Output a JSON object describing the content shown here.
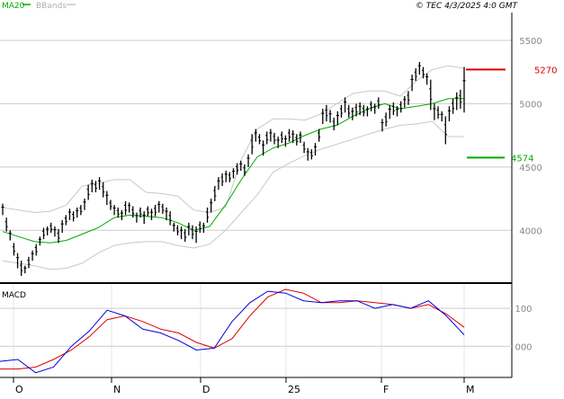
{
  "header": {
    "legend_ma": "MA20",
    "legend_bbands": "BBands",
    "source": "© TEC 4/3/2025 4:0 GMT"
  },
  "colors": {
    "price": "#000000",
    "ma": "#00aa00",
    "bbands": "#c8c8c8",
    "grid": "#cccccc",
    "resistance": "#dd0000",
    "support": "#00aa00",
    "macd": "#0000dd",
    "signal": "#dd0000"
  },
  "chart_data": [
    {
      "type": "ohlc",
      "panel": "price",
      "title": "",
      "legend": [
        "MA20",
        "BBands"
      ],
      "x_ticks": [
        "O",
        "N",
        "D",
        "25",
        "F",
        "M"
      ],
      "y_ticks": [
        4000,
        4500,
        5000,
        5500
      ],
      "ylim": [
        3590,
        5720
      ],
      "grid": "horizontal",
      "levels": [
        {
          "name": "resistance",
          "label": "5270",
          "value": 5270,
          "color": "#dd0000"
        },
        {
          "name": "support",
          "label": "4574",
          "value": 4574,
          "color": "#00aa00"
        }
      ],
      "series": [
        {
          "name": "price",
          "kind": "bars",
          "values": [
            [
              4210,
              4120
            ],
            [
              4100,
              3990
            ],
            [
              4000,
              3920
            ],
            [
              3900,
              3800
            ],
            [
              3820,
              3700
            ],
            [
              3760,
              3640
            ],
            [
              3720,
              3660
            ],
            [
              3790,
              3700
            ],
            [
              3840,
              3760
            ],
            [
              3890,
              3800
            ],
            [
              3950,
              3880
            ],
            [
              4020,
              3930
            ],
            [
              4030,
              3960
            ],
            [
              4060,
              3980
            ],
            [
              4030,
              3950
            ],
            [
              4010,
              3900
            ],
            [
              4080,
              3980
            ],
            [
              4120,
              4040
            ],
            [
              4170,
              4080
            ],
            [
              4150,
              4070
            ],
            [
              4180,
              4100
            ],
            [
              4200,
              4120
            ],
            [
              4250,
              4160
            ],
            [
              4360,
              4240
            ],
            [
              4400,
              4300
            ],
            [
              4390,
              4300
            ],
            [
              4420,
              4320
            ],
            [
              4380,
              4260
            ],
            [
              4310,
              4200
            ],
            [
              4240,
              4160
            ],
            [
              4200,
              4120
            ],
            [
              4180,
              4100
            ],
            [
              4160,
              4080
            ],
            [
              4230,
              4120
            ],
            [
              4220,
              4140
            ],
            [
              4190,
              4100
            ],
            [
              4140,
              4060
            ],
            [
              4180,
              4100
            ],
            [
              4150,
              4050
            ],
            [
              4190,
              4110
            ],
            [
              4170,
              4080
            ],
            [
              4200,
              4110
            ],
            [
              4230,
              4140
            ],
            [
              4210,
              4130
            ],
            [
              4180,
              4080
            ],
            [
              4150,
              4040
            ],
            [
              4060,
              3990
            ],
            [
              4040,
              3960
            ],
            [
              4030,
              3930
            ],
            [
              4010,
              3910
            ],
            [
              4060,
              3960
            ],
            [
              4040,
              3930
            ],
            [
              4030,
              3900
            ],
            [
              4070,
              3980
            ],
            [
              4060,
              3980
            ],
            [
              4180,
              4060
            ],
            [
              4250,
              4140
            ],
            [
              4350,
              4230
            ],
            [
              4420,
              4320
            ],
            [
              4450,
              4350
            ],
            [
              4470,
              4380
            ],
            [
              4460,
              4380
            ],
            [
              4490,
              4410
            ],
            [
              4530,
              4440
            ],
            [
              4550,
              4470
            ],
            [
              4520,
              4430
            ],
            [
              4600,
              4500
            ],
            [
              4760,
              4600
            ],
            [
              4800,
              4700
            ],
            [
              4760,
              4680
            ],
            [
              4710,
              4590
            ],
            [
              4780,
              4680
            ],
            [
              4800,
              4700
            ],
            [
              4770,
              4680
            ],
            [
              4740,
              4650
            ],
            [
              4780,
              4690
            ],
            [
              4750,
              4660
            ],
            [
              4800,
              4700
            ],
            [
              4790,
              4690
            ],
            [
              4760,
              4670
            ],
            [
              4780,
              4690
            ],
            [
              4700,
              4610
            ],
            [
              4650,
              4550
            ],
            [
              4640,
              4560
            ],
            [
              4690,
              4590
            ],
            [
              4800,
              4700
            ],
            [
              4960,
              4840
            ],
            [
              4990,
              4860
            ],
            [
              4950,
              4850
            ],
            [
              4890,
              4790
            ],
            [
              4940,
              4830
            ],
            [
              4990,
              4890
            ],
            [
              5050,
              4930
            ],
            [
              4990,
              4890
            ],
            [
              4970,
              4870
            ],
            [
              5000,
              4900
            ],
            [
              5010,
              4910
            ],
            [
              4990,
              4900
            ],
            [
              4980,
              4900
            ],
            [
              5020,
              4940
            ],
            [
              5000,
              4920
            ],
            [
              5050,
              4960
            ],
            [
              4880,
              4780
            ],
            [
              4930,
              4820
            ],
            [
              4990,
              4880
            ],
            [
              5010,
              4910
            ],
            [
              4980,
              4900
            ],
            [
              5020,
              4930
            ],
            [
              5060,
              4970
            ],
            [
              5100,
              4990
            ],
            [
              5230,
              5100
            ],
            [
              5280,
              5180
            ],
            [
              5330,
              5230
            ],
            [
              5290,
              5200
            ],
            [
              5240,
              5150
            ],
            [
              5190,
              4950
            ],
            [
              5000,
              4870
            ],
            [
              4980,
              4880
            ],
            [
              4940,
              4860
            ],
            [
              4900,
              4680
            ],
            [
              4980,
              4860
            ],
            [
              5040,
              4920
            ],
            [
              5090,
              4950
            ],
            [
              5110,
              4960
            ],
            [
              5290,
              4930
            ]
          ]
        },
        {
          "name": "MA20",
          "kind": "line",
          "values": [
            3990,
            3950,
            3910,
            3900,
            3920,
            3970,
            4020,
            4100,
            4120,
            4110,
            4100,
            4060,
            4000,
            4030,
            4200,
            4400,
            4580,
            4650,
            4690,
            4750,
            4800,
            4830,
            4900,
            4960,
            5000,
            4960,
            4980,
            5000,
            5040,
            5040
          ]
        },
        {
          "name": "BBand upper",
          "kind": "line",
          "values": [
            4180,
            4160,
            4140,
            4150,
            4200,
            4350,
            4370,
            4400,
            4400,
            4300,
            4290,
            4270,
            4160,
            4140,
            4180,
            4560,
            4800,
            4880,
            4880,
            4870,
            4920,
            5000,
            5080,
            5100,
            5100,
            5060,
            5180,
            5270,
            5300,
            5280
          ]
        },
        {
          "name": "BBand lower",
          "kind": "line",
          "values": [
            3760,
            3740,
            3720,
            3690,
            3700,
            3740,
            3820,
            3880,
            3900,
            3910,
            3910,
            3880,
            3860,
            3890,
            4000,
            4140,
            4280,
            4460,
            4530,
            4590,
            4640,
            4680,
            4720,
            4760,
            4800,
            4830,
            4840,
            4860,
            4740,
            4740
          ]
        }
      ]
    },
    {
      "type": "line",
      "panel": "indicator",
      "title": "MACD",
      "x_ticks": [
        "O",
        "N",
        "D",
        "25",
        "F",
        "M"
      ],
      "y_ticks": [
        "000",
        "100"
      ],
      "ylim": [
        -80,
        150
      ],
      "grid": "horizontal",
      "series": [
        {
          "name": "MACD",
          "values": [
            -40,
            -35,
            -70,
            -55,
            0,
            40,
            95,
            80,
            45,
            35,
            15,
            -10,
            -5,
            65,
            115,
            145,
            140,
            120,
            115,
            120,
            120,
            100,
            110,
            100,
            120,
            80,
            30
          ]
        },
        {
          "name": "Signal",
          "values": [
            -60,
            -60,
            -55,
            -35,
            -10,
            25,
            70,
            80,
            65,
            45,
            35,
            10,
            -5,
            20,
            80,
            130,
            150,
            140,
            115,
            115,
            120,
            115,
            110,
            100,
            110,
            85,
            50
          ]
        }
      ]
    }
  ]
}
